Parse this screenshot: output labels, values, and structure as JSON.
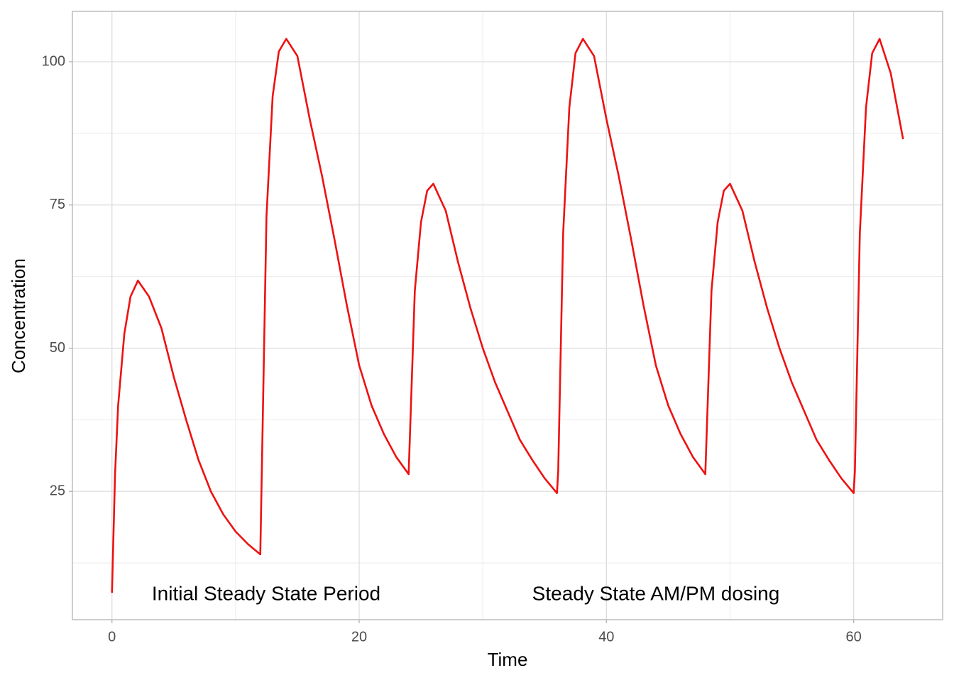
{
  "chart_data": {
    "type": "line",
    "x_label": "Time",
    "y_label": "Concentration",
    "annotations": [
      "Initial Steady State Period",
      "Steady State AM/PM dosing"
    ],
    "x": [
      0,
      0.25,
      0.5,
      1,
      1.5,
      2.1,
      3,
      4,
      5,
      6,
      7,
      8,
      9,
      10,
      11,
      12,
      12.5,
      13,
      13.5,
      14.1,
      15,
      16,
      17,
      18,
      19,
      20,
      21,
      22,
      23,
      24,
      24.5,
      25,
      25.5,
      26,
      27,
      28,
      29,
      30,
      31,
      32,
      33,
      34,
      35,
      36,
      36.1,
      36.5,
      37,
      37.5,
      38.1,
      39,
      40,
      41,
      42,
      43,
      44,
      45,
      46,
      47,
      48,
      48.5,
      49,
      49.5,
      50,
      51,
      52,
      53,
      54,
      55,
      56,
      57,
      58,
      59,
      60,
      60.1,
      60.5,
      61,
      61.5,
      62.1,
      63,
      64
    ],
    "series": [
      {
        "name": "Concentration",
        "color": "#ee1111",
        "values": [
          7.3,
          28,
          40,
          52.5,
          59,
          61.8,
          59,
          53.5,
          45,
          37.5,
          30.5,
          25,
          21,
          18,
          15.8,
          14,
          73,
          94,
          101.8,
          104,
          101,
          90,
          80,
          69,
          57.5,
          47,
          40,
          35,
          31,
          28,
          60,
          72,
          77.5,
          78.7,
          74,
          65,
          57,
          50,
          44,
          39,
          34,
          30.5,
          27.3,
          24.7,
          28.5,
          70,
          92,
          101.5,
          104,
          101,
          90,
          80,
          69,
          57.5,
          47,
          40,
          35,
          31,
          28,
          60,
          72,
          77.5,
          78.7,
          74,
          65,
          57,
          50,
          44,
          39,
          34,
          30.5,
          27.3,
          24.7,
          28.5,
          70,
          92,
          101.5,
          104,
          98,
          86.5
        ]
      }
    ],
    "xlim": [
      -3.2,
      67.2
    ],
    "xticks": [
      0,
      20,
      40,
      60
    ],
    "minor_xticks": [
      10,
      30,
      50
    ],
    "ylim": [
      2.6,
      108.8
    ],
    "yticks": [
      25,
      50,
      75,
      100
    ],
    "minor_yticks": [
      12.5,
      37.5,
      62.5,
      87.5
    ],
    "grid": true
  }
}
